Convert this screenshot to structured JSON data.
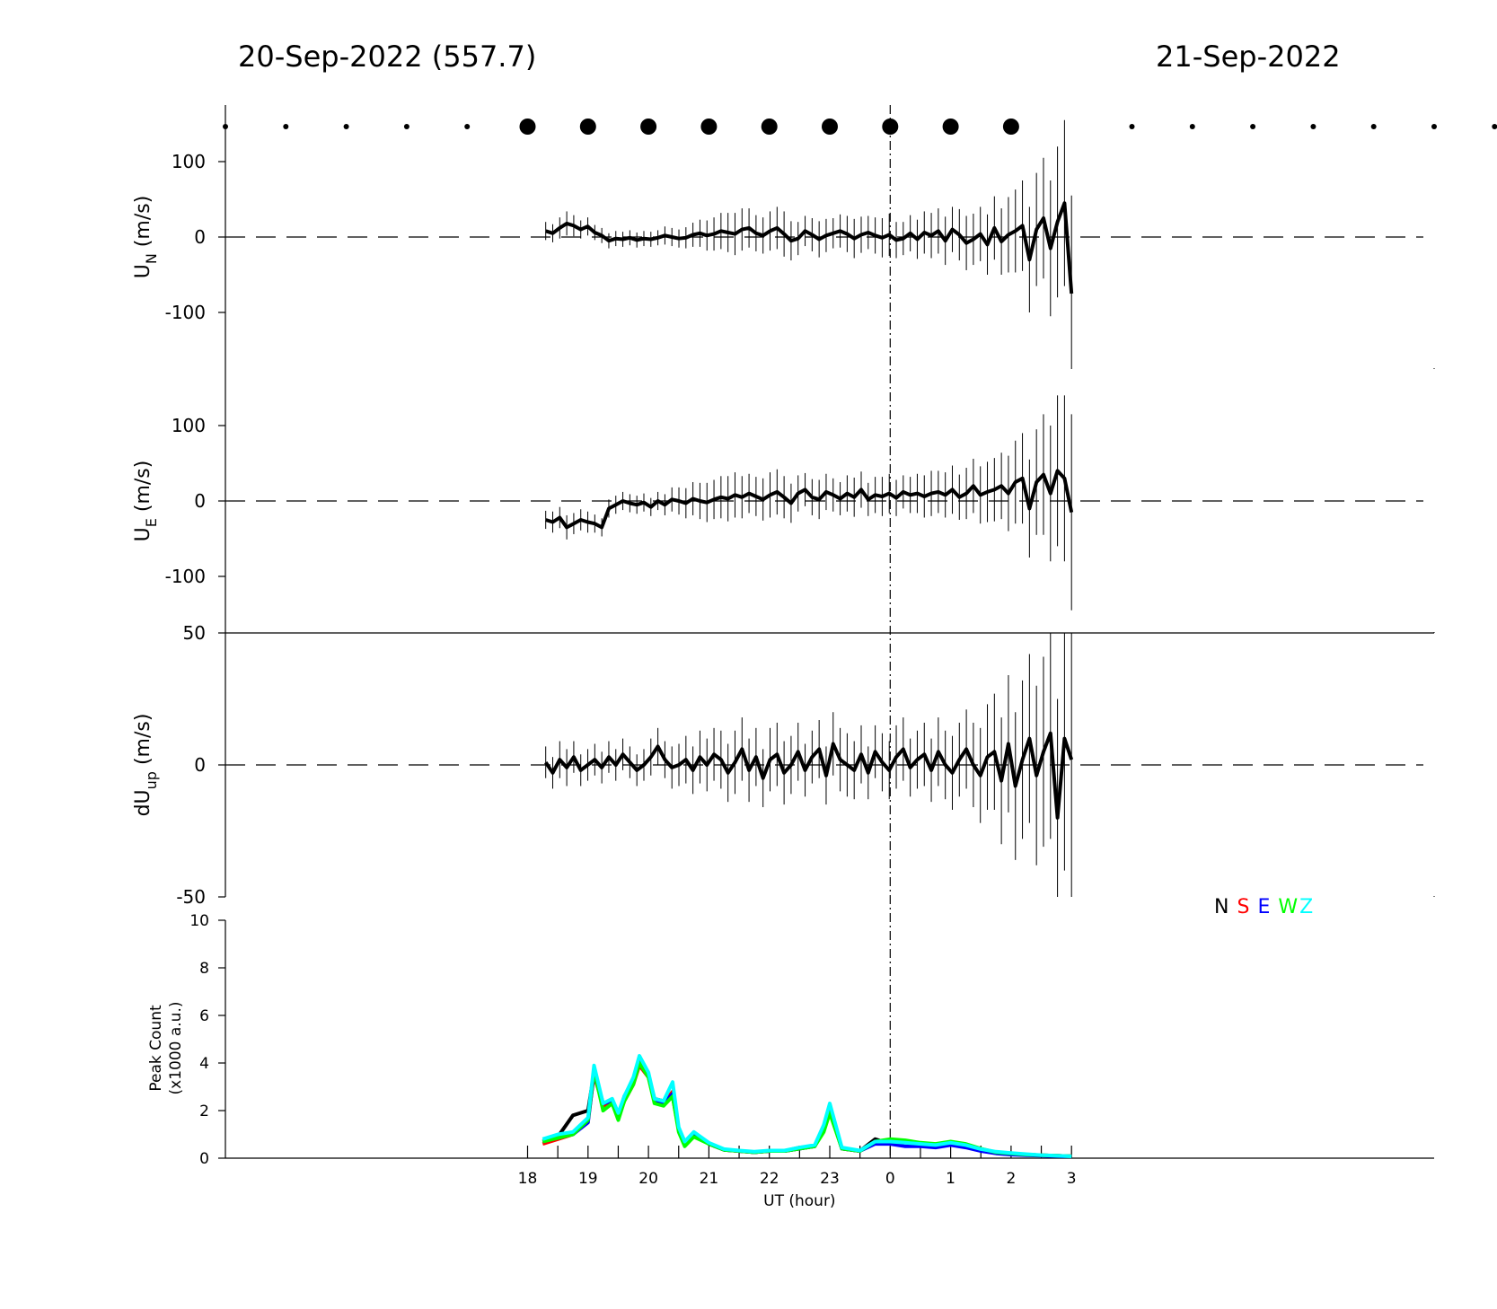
{
  "titles": {
    "left": "20-Sep-2022 (557.7)",
    "right": "21-Sep-2022"
  },
  "colors": {
    "N": "#000000",
    "S": "#ff0000",
    "E": "#0000ff",
    "W": "#00ff00",
    "Z": "#00ffff"
  },
  "legend": [
    {
      "label": "N",
      "color": "#000000"
    },
    {
      "label": "S",
      "color": "#ff0000"
    },
    {
      "label": "E",
      "color": "#0000ff"
    },
    {
      "label": "W",
      "color": "#00ff00"
    },
    {
      "label": "Z",
      "color": "#00ffff"
    }
  ],
  "chart_data": [
    {
      "type": "scatter",
      "id": "sky",
      "note_units": "hours since 18 UT on 20-Sep-2022 mapped on same UT axis",
      "dots_small_x": [
        -5,
        -4,
        -3,
        -2,
        -1,
        10,
        11,
        12,
        13,
        14,
        15,
        16
      ],
      "dots_large_x": [
        0,
        1,
        2,
        3,
        4,
        5,
        6,
        7,
        8
      ]
    },
    {
      "type": "line",
      "id": "un",
      "ylabel_main": "U",
      "ylabel_sub": "N",
      "ylabel_unit": " (m/s)",
      "yticks": [
        100,
        0,
        -100
      ],
      "ylim": [
        -175,
        175
      ],
      "x_start": 18.3,
      "x_end": 27.0,
      "values": [
        8,
        5,
        12,
        18,
        15,
        10,
        14,
        6,
        2,
        -5,
        -2,
        -3,
        -1,
        -4,
        -2,
        -3,
        -1,
        2,
        0,
        -2,
        -1,
        3,
        5,
        2,
        4,
        8,
        6,
        4,
        10,
        12,
        5,
        2,
        8,
        12,
        4,
        -5,
        -2,
        8,
        3,
        -3,
        2,
        5,
        8,
        4,
        -2,
        3,
        6,
        2,
        -1,
        3,
        -4,
        -2,
        5,
        -3,
        6,
        2,
        8,
        -5,
        10,
        3,
        -8,
        -3,
        4,
        -10,
        12,
        -6,
        3,
        8,
        15,
        -30,
        10,
        25,
        -15,
        20,
        45,
        -75
      ],
      "errors": [
        12,
        12,
        14,
        16,
        14,
        12,
        12,
        10,
        10,
        10,
        10,
        10,
        10,
        10,
        10,
        10,
        10,
        12,
        12,
        12,
        14,
        16,
        18,
        20,
        22,
        24,
        26,
        28,
        28,
        26,
        24,
        24,
        26,
        28,
        30,
        26,
        22,
        20,
        22,
        24,
        22,
        20,
        22,
        24,
        26,
        24,
        22,
        24,
        26,
        28,
        24,
        22,
        24,
        26,
        28,
        30,
        30,
        32,
        30,
        34,
        36,
        34,
        36,
        40,
        42,
        44,
        50,
        55,
        60,
        70,
        75,
        80,
        90,
        100,
        110,
        130
      ]
    },
    {
      "type": "line",
      "id": "ue",
      "ylabel_main": "U",
      "ylabel_sub": "E",
      "ylabel_unit": " (m/s)",
      "yticks": [
        100,
        0,
        -100
      ],
      "ylim": [
        -175,
        175
      ],
      "x_start": 18.3,
      "x_end": 27.0,
      "values": [
        -25,
        -28,
        -22,
        -35,
        -30,
        -25,
        -28,
        -30,
        -35,
        -10,
        -5,
        0,
        -3,
        -5,
        -2,
        -8,
        0,
        -5,
        2,
        0,
        -3,
        3,
        0,
        -2,
        2,
        5,
        3,
        8,
        5,
        10,
        6,
        2,
        8,
        12,
        5,
        -3,
        10,
        15,
        5,
        2,
        12,
        8,
        3,
        10,
        5,
        15,
        2,
        8,
        6,
        10,
        4,
        12,
        8,
        10,
        6,
        10,
        12,
        8,
        15,
        5,
        10,
        20,
        8,
        12,
        15,
        20,
        10,
        25,
        30,
        -10,
        25,
        35,
        10,
        40,
        30,
        -15
      ],
      "errors": [
        12,
        14,
        14,
        16,
        14,
        14,
        14,
        12,
        12,
        12,
        12,
        12,
        12,
        12,
        12,
        12,
        12,
        14,
        16,
        18,
        20,
        22,
        24,
        26,
        26,
        28,
        30,
        30,
        28,
        26,
        26,
        28,
        30,
        30,
        28,
        26,
        24,
        22,
        24,
        26,
        24,
        22,
        22,
        24,
        26,
        24,
        22,
        24,
        26,
        26,
        24,
        22,
        24,
        26,
        28,
        30,
        28,
        30,
        32,
        30,
        34,
        36,
        38,
        40,
        42,
        44,
        50,
        55,
        60,
        65,
        70,
        80,
        90,
        100,
        110,
        130
      ]
    },
    {
      "type": "line",
      "id": "dup",
      "ylabel_main": "dU",
      "ylabel_sub": "up",
      "ylabel_unit": " (m/s)",
      "yticks": [
        50,
        0,
        -50
      ],
      "ylim": [
        -50,
        50
      ],
      "x_start": 18.3,
      "x_end": 27.0,
      "values": [
        1,
        -3,
        2,
        -1,
        3,
        -2,
        0,
        2,
        -1,
        3,
        0,
        4,
        1,
        -2,
        0,
        3,
        7,
        2,
        -1,
        0,
        2,
        -2,
        3,
        0,
        4,
        2,
        -3,
        1,
        6,
        -2,
        3,
        -5,
        2,
        4,
        -3,
        0,
        5,
        -2,
        3,
        6,
        -4,
        8,
        2,
        0,
        -2,
        4,
        -3,
        5,
        1,
        -2,
        3,
        6,
        -1,
        2,
        4,
        -2,
        5,
        0,
        -3,
        2,
        6,
        0,
        -4,
        3,
        5,
        -6,
        8,
        -8,
        2,
        10,
        -4,
        5,
        12,
        -20,
        10,
        2
      ],
      "errors": [
        6,
        6,
        7,
        7,
        6,
        6,
        6,
        6,
        6,
        6,
        6,
        6,
        6,
        6,
        6,
        7,
        7,
        7,
        8,
        8,
        9,
        9,
        10,
        10,
        10,
        11,
        11,
        12,
        12,
        12,
        11,
        11,
        12,
        12,
        12,
        11,
        11,
        10,
        10,
        11,
        11,
        12,
        12,
        12,
        11,
        11,
        10,
        10,
        11,
        11,
        12,
        12,
        11,
        11,
        12,
        12,
        13,
        13,
        14,
        14,
        15,
        16,
        18,
        20,
        22,
        24,
        26,
        28,
        30,
        32,
        34,
        36,
        40,
        45,
        50,
        55
      ]
    },
    {
      "type": "line",
      "id": "peak",
      "ylabel_line1": "Peak Count",
      "ylabel_line2": "(x1000 a.u.)",
      "xlabel": "UT (hour)",
      "xtick_labels": [
        "18",
        "19",
        "20",
        "21",
        "22",
        "23",
        "0",
        "1",
        "2",
        "3"
      ],
      "xlim": [
        13,
        33
      ],
      "yticks": [
        10,
        8,
        6,
        4,
        2,
        0
      ],
      "ylim": [
        0,
        10
      ],
      "x": [
        18.25,
        18.5,
        18.75,
        19.0,
        19.1,
        19.25,
        19.4,
        19.5,
        19.6,
        19.75,
        19.85,
        20.0,
        20.1,
        20.25,
        20.4,
        20.5,
        20.6,
        20.75,
        21.0,
        21.25,
        21.5,
        21.75,
        22.0,
        22.25,
        22.5,
        22.75,
        22.9,
        23.0,
        23.2,
        23.5,
        23.75,
        24.0,
        24.25,
        24.5,
        24.75,
        25.0,
        25.25,
        25.5,
        25.75,
        26.0,
        26.25,
        26.5,
        26.75,
        27.0
      ],
      "series": [
        {
          "name": "N",
          "values": [
            0.7,
            0.9,
            1.8,
            2.0,
            3.6,
            2.3,
            2.4,
            1.8,
            2.5,
            3.2,
            4.0,
            3.5,
            2.5,
            2.4,
            2.6,
            1.2,
            0.7,
            1.0,
            0.6,
            0.35,
            0.3,
            0.25,
            0.3,
            0.3,
            0.4,
            0.5,
            1.3,
            2.0,
            0.4,
            0.3,
            0.8,
            0.6,
            0.7,
            0.6,
            0.5,
            0.6,
            0.5,
            0.35,
            0.25,
            0.2,
            0.15,
            0.12,
            0.1,
            0.08
          ]
        },
        {
          "name": "S",
          "values": [
            0.6,
            0.8,
            1.0,
            1.6,
            3.5,
            2.2,
            2.3,
            1.7,
            2.4,
            3.1,
            3.9,
            3.4,
            2.4,
            2.3,
            2.8,
            1.2,
            0.7,
            1.0,
            0.6,
            0.35,
            0.3,
            0.25,
            0.3,
            0.3,
            0.45,
            0.5,
            1.2,
            2.0,
            0.4,
            0.3,
            0.7,
            0.7,
            0.7,
            0.6,
            0.5,
            0.6,
            0.55,
            0.35,
            0.25,
            0.2,
            0.15,
            0.12,
            0.1,
            0.08
          ]
        },
        {
          "name": "E",
          "values": [
            0.7,
            0.9,
            1.0,
            1.5,
            3.6,
            2.3,
            2.4,
            1.8,
            2.6,
            3.3,
            4.1,
            3.5,
            2.4,
            2.3,
            2.7,
            1.2,
            0.7,
            1.0,
            0.6,
            0.35,
            0.3,
            0.25,
            0.3,
            0.3,
            0.4,
            0.5,
            1.3,
            2.1,
            0.4,
            0.3,
            0.6,
            0.6,
            0.5,
            0.5,
            0.45,
            0.55,
            0.45,
            0.3,
            0.2,
            0.15,
            0.12,
            0.1,
            0.08,
            0.07
          ]
        },
        {
          "name": "W",
          "values": [
            0.7,
            0.85,
            1.0,
            1.6,
            3.7,
            2.0,
            2.3,
            1.6,
            2.4,
            3.1,
            4.0,
            3.4,
            2.3,
            2.2,
            2.6,
            1.1,
            0.5,
            0.9,
            0.6,
            0.35,
            0.3,
            0.25,
            0.3,
            0.3,
            0.4,
            0.5,
            1.1,
            1.9,
            0.4,
            0.3,
            0.7,
            0.8,
            0.75,
            0.65,
            0.6,
            0.7,
            0.6,
            0.4,
            0.25,
            0.2,
            0.15,
            0.12,
            0.1,
            0.08
          ]
        },
        {
          "name": "Z",
          "values": [
            0.8,
            1.0,
            1.1,
            1.7,
            3.9,
            2.3,
            2.5,
            1.9,
            2.6,
            3.4,
            4.3,
            3.6,
            2.5,
            2.4,
            3.2,
            1.3,
            0.7,
            1.1,
            0.65,
            0.38,
            0.32,
            0.27,
            0.32,
            0.32,
            0.45,
            0.55,
            1.4,
            2.3,
            0.45,
            0.32,
            0.7,
            0.7,
            0.65,
            0.6,
            0.55,
            0.65,
            0.55,
            0.38,
            0.27,
            0.22,
            0.17,
            0.13,
            0.1,
            0.08
          ]
        }
      ]
    }
  ]
}
